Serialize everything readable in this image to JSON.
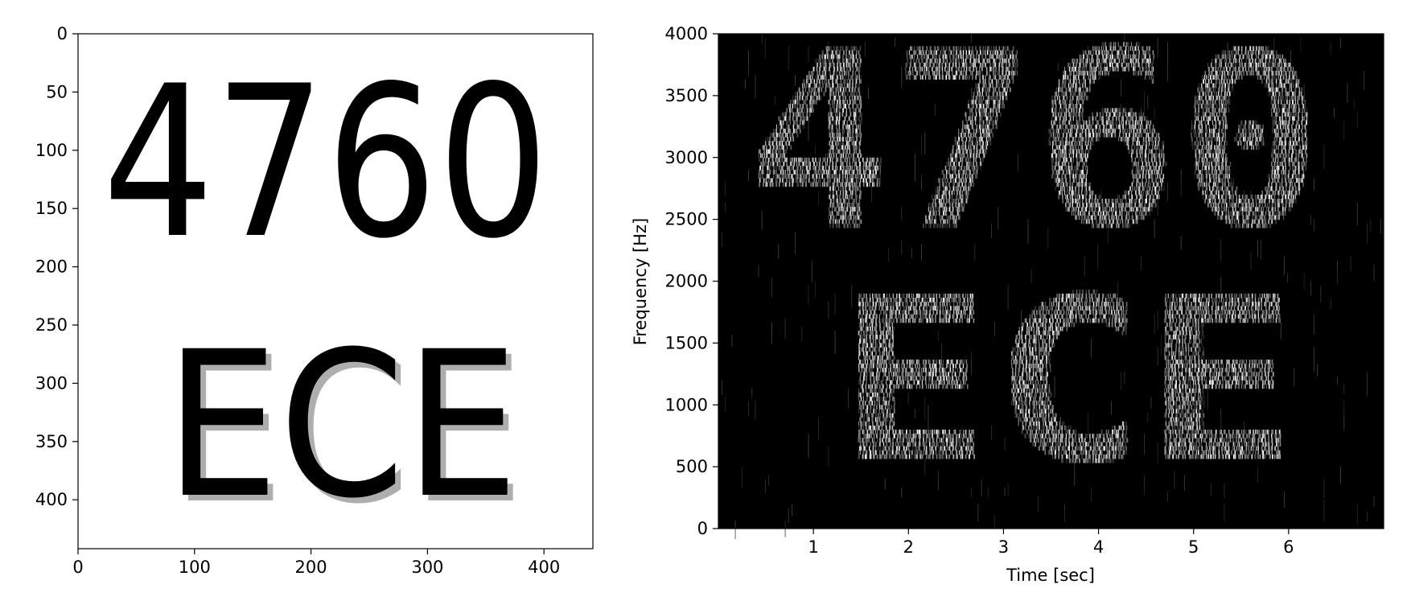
{
  "chart_data": [
    {
      "type": "image",
      "image_text": {
        "line1": "4760",
        "line2": "ECE"
      },
      "colors": {
        "foreground": "#000000",
        "background": "#ffffff"
      },
      "x_ticks": [
        0,
        100,
        200,
        300,
        400
      ],
      "y_ticks": [
        0,
        50,
        100,
        150,
        200,
        250,
        300,
        350,
        400
      ],
      "xlim": [
        0,
        442
      ],
      "ylim": [
        442,
        0
      ],
      "xlabel": "",
      "ylabel": "",
      "title": ""
    },
    {
      "type": "heatmap",
      "xlabel": "Time [sec]",
      "ylabel": "Frequency [Hz]",
      "x_ticks": [
        1,
        2,
        3,
        4,
        5,
        6
      ],
      "y_ticks": [
        0,
        500,
        1000,
        1500,
        2000,
        2500,
        3000,
        3500,
        4000
      ],
      "xlim": [
        0,
        7
      ],
      "ylim": [
        0,
        4000
      ],
      "colormap": "gray",
      "colors": {
        "background": "#000000",
        "energy": "#ffffff"
      },
      "hidden_text": {
        "line1": "4760",
        "line2": "ECE"
      },
      "text_bands": [
        {
          "text": "4760",
          "time": [
            0.3,
            6.35
          ],
          "frequency": [
            2300,
            3800
          ]
        },
        {
          "text": "ECE",
          "time": [
            1.25,
            6.1
          ],
          "frequency": [
            400,
            1800
          ]
        }
      ],
      "title": ""
    }
  ]
}
